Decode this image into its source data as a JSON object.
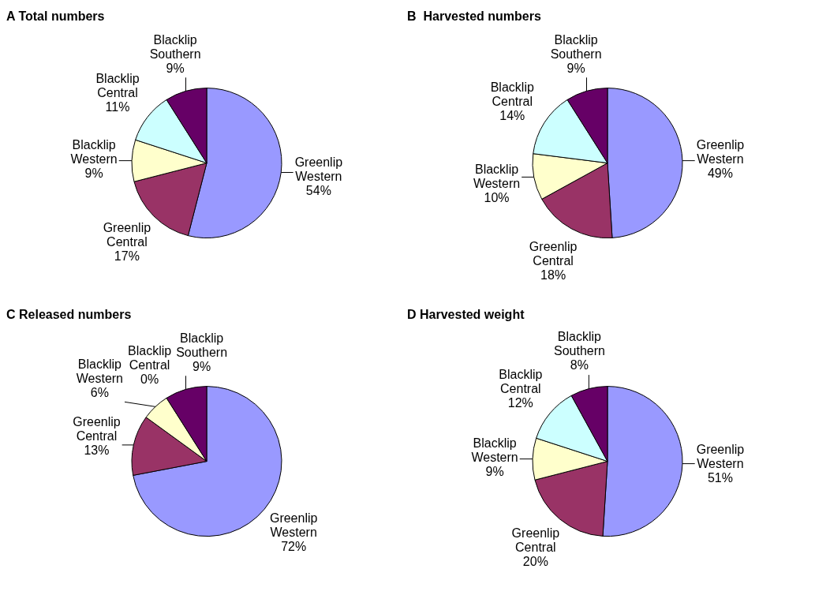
{
  "chart_data": [
    {
      "type": "pie",
      "title": "A Total numbers",
      "categories": [
        "Greenlip Western",
        "Greenlip Central",
        "Blacklip Western",
        "Blacklip Central",
        "Blacklip Southern"
      ],
      "values": [
        54,
        17,
        9,
        11,
        9
      ],
      "colors": [
        "#9999ff",
        "#993366",
        "#ffffcc",
        "#ccffff",
        "#660066"
      ],
      "value_labels": [
        "54%",
        "17%",
        "9%",
        "11%",
        "9%"
      ]
    },
    {
      "type": "pie",
      "title": "B  Harvested numbers",
      "categories": [
        "Greenlip Western",
        "Greenlip Central",
        "Blacklip Western",
        "Blacklip Central",
        "Blacklip Southern"
      ],
      "values": [
        49,
        18,
        10,
        14,
        9
      ],
      "colors": [
        "#9999ff",
        "#993366",
        "#ffffcc",
        "#ccffff",
        "#660066"
      ],
      "value_labels": [
        "49%",
        "18%",
        "10%",
        "14%",
        "9%"
      ]
    },
    {
      "type": "pie",
      "title": "C Released numbers",
      "categories": [
        "Greenlip Western",
        "Greenlip Central",
        "Blacklip Western",
        "Blacklip Central",
        "Blacklip Southern"
      ],
      "values": [
        72,
        13,
        6,
        0,
        9
      ],
      "colors": [
        "#9999ff",
        "#993366",
        "#ffffcc",
        "#ccffff",
        "#660066"
      ],
      "value_labels": [
        "72%",
        "13%",
        "6%",
        "0%",
        "9%"
      ]
    },
    {
      "type": "pie",
      "title": "D Harvested weight",
      "categories": [
        "Greenlip Western",
        "Greenlip Central",
        "Blacklip Western",
        "Blacklip Central",
        "Blacklip Southern"
      ],
      "values": [
        51,
        20,
        9,
        12,
        8
      ],
      "colors": [
        "#9999ff",
        "#993366",
        "#ffffcc",
        "#ccffff",
        "#660066"
      ],
      "value_labels": [
        "51%",
        "20%",
        "9%",
        "12%",
        "8%"
      ]
    }
  ]
}
